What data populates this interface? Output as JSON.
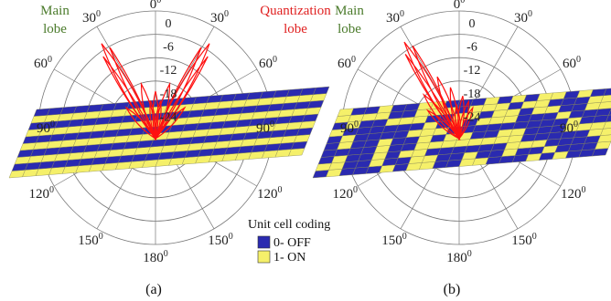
{
  "panels": [
    {
      "id": "a",
      "caption": "(a)",
      "annotations": [
        {
          "lines": [
            "Main",
            "lobe"
          ],
          "color": "#4a7a2a"
        },
        {
          "lines": [
            "Quantization",
            "lobe"
          ],
          "color": "#e02020"
        }
      ],
      "pattern": "stripes"
    },
    {
      "id": "b",
      "caption": "(b)",
      "annotations": [
        {
          "lines": [
            "Main",
            "lobe"
          ],
          "color": "#4a7a2a"
        }
      ],
      "pattern": "random"
    }
  ],
  "angle_labels": {
    "top": [
      "0",
      "0"
    ],
    "r30": [
      "30",
      "0"
    ],
    "l30": [
      "30",
      "0"
    ],
    "r60": [
      "60",
      "0"
    ],
    "l60": [
      "60",
      "0"
    ],
    "r90": [
      "90",
      "0"
    ],
    "l90": [
      "90",
      "0"
    ],
    "r120": [
      "120",
      "0"
    ],
    "l120": [
      "120",
      "0"
    ],
    "r150": [
      "150",
      "0"
    ],
    "l150": [
      "150",
      "0"
    ],
    "bottom": [
      "180",
      "0"
    ]
  },
  "radial_labels": [
    "0",
    "-6",
    "-12",
    "-18",
    "-24"
  ],
  "legend": {
    "title": "Unit cell coding",
    "items": [
      {
        "label": "0- OFF",
        "color": "#2a2ab0"
      },
      {
        "label": "1- ON",
        "color": "#f5f06a"
      }
    ]
  },
  "colors": {
    "lobe": "#ff1010",
    "grid": "#777777",
    "cell_border": "#888855"
  }
}
